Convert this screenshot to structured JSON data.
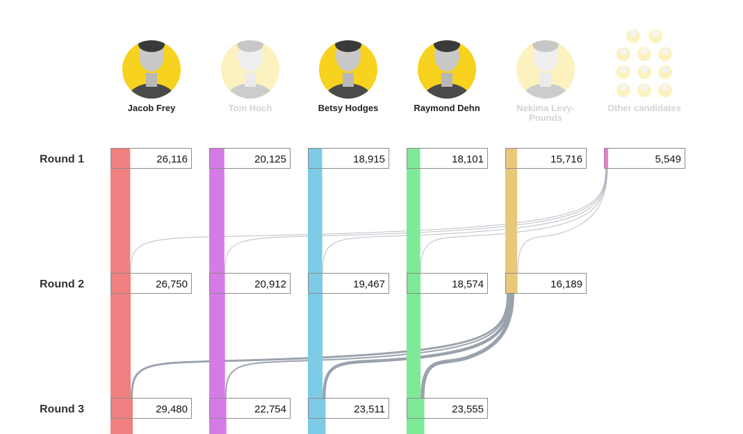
{
  "chart_data": {
    "type": "sankey",
    "title": "",
    "rounds": [
      "Round 1",
      "Round 2",
      "Round 3"
    ],
    "candidates": [
      {
        "name": "Jacob Frey",
        "color": "#f08080",
        "active": true,
        "photo": "jacob-frey-photo"
      },
      {
        "name": "Tom Hoch",
        "color": "#d67be6",
        "active": false,
        "photo": "tom-hoch-photo"
      },
      {
        "name": "Betsy Hodges",
        "color": "#7ecbe5",
        "active": true,
        "photo": "betsy-hodges-photo"
      },
      {
        "name": "Raymond Dehn",
        "color": "#7eea98",
        "active": true,
        "photo": "raymond-dehn-photo"
      },
      {
        "name": "Nekima Levy-Pounds",
        "color": "#e8c97a",
        "active": false,
        "photo": "nekima-levy-pounds-photo"
      },
      {
        "name": "Other candidates",
        "color": "#ee7ccf",
        "active": false,
        "photo": "other-candidates-photo"
      }
    ],
    "votes": [
      [
        26116,
        20125,
        18915,
        18101,
        15716,
        5549
      ],
      [
        26750,
        20912,
        19467,
        18574,
        16189
      ],
      [
        29480,
        22754,
        23511,
        23555
      ]
    ],
    "vote_labels": [
      [
        "26,116",
        "20,125",
        "18,915",
        "18,101",
        "15,716",
        "5,549"
      ],
      [
        "26,750",
        "20,912",
        "19,467",
        "18,574",
        "16,189"
      ],
      [
        "29,480",
        "22,754",
        "23,511",
        "23,555"
      ]
    ],
    "transfer_color": "#9aa2ad",
    "transfers": [
      {
        "from_round": 0,
        "from": 5,
        "to": 0,
        "votes": 634
      },
      {
        "from_round": 0,
        "from": 5,
        "to": 1,
        "votes": 787
      },
      {
        "from_round": 0,
        "from": 5,
        "to": 2,
        "votes": 552
      },
      {
        "from_round": 0,
        "from": 5,
        "to": 3,
        "votes": 473
      },
      {
        "from_round": 0,
        "from": 5,
        "to": 4,
        "votes": 473
      },
      {
        "from_round": 1,
        "from": 4,
        "to": 0,
        "votes": 2730
      },
      {
        "from_round": 1,
        "from": 4,
        "to": 1,
        "votes": 1842
      },
      {
        "from_round": 1,
        "from": 4,
        "to": 2,
        "votes": 4044
      },
      {
        "from_round": 1,
        "from": 4,
        "to": 3,
        "votes": 4981
      }
    ],
    "photo_accent": "#f7d21e",
    "photo_accent_faded": "#fbeeb0"
  }
}
